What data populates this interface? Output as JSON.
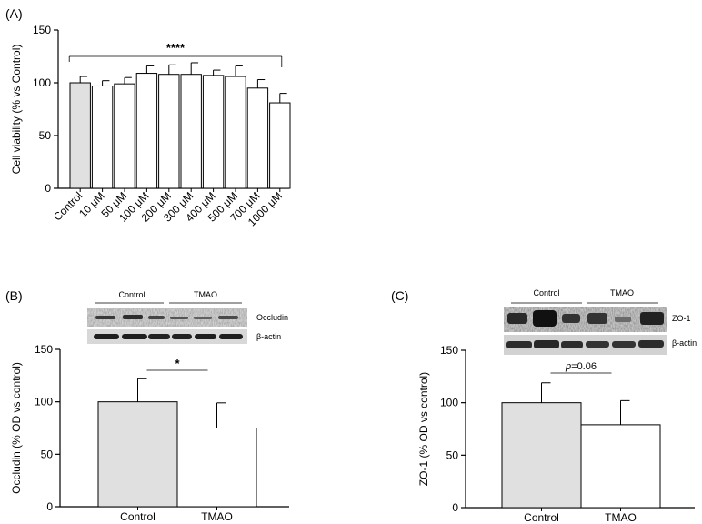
{
  "panels": {
    "a": {
      "label": "(A)"
    },
    "b": {
      "label": "(B)"
    },
    "c": {
      "label": "(C)"
    }
  },
  "chart_data": [
    {
      "type": "bar",
      "panel": "(A)",
      "title": "",
      "xlabel": "",
      "ylabel": "Cell viability (% vs Control)",
      "ylim": [
        0,
        150
      ],
      "yticks": [
        "0",
        "50",
        "100",
        "150"
      ],
      "categories": [
        "Control",
        "10 μM",
        "50 μM",
        "100 μM",
        "200 μM",
        "300 μM",
        "400 μM",
        "500 μM",
        "700 μM",
        "1000 μM"
      ],
      "values": [
        100,
        97,
        99,
        109,
        108,
        108,
        107,
        106,
        95,
        81
      ],
      "errors": [
        6,
        5,
        6,
        7,
        9,
        11,
        5,
        10,
        8,
        9
      ],
      "bar_colors": [
        "#e0e0e0",
        "#ffffff",
        "#ffffff",
        "#ffffff",
        "#ffffff",
        "#ffffff",
        "#ffffff",
        "#ffffff",
        "#ffffff",
        "#ffffff"
      ],
      "significance": {
        "from": 0,
        "to": 9,
        "label": "****"
      },
      "grid": false
    },
    {
      "type": "bar",
      "panel": "(B)",
      "title": "",
      "xlabel": "",
      "ylabel": "Occludin (% OD vs control)",
      "ylim": [
        0,
        150
      ],
      "yticks": [
        "0",
        "50",
        "100",
        "150"
      ],
      "categories": [
        "Control",
        "TMAO"
      ],
      "values": [
        100,
        75
      ],
      "errors": [
        22,
        24
      ],
      "bar_colors": [
        "#e0e0e0",
        "#ffffff"
      ],
      "significance": {
        "from": 0,
        "to": 1,
        "label": "*"
      },
      "blot": {
        "group_labels": [
          "Control",
          "TMAO"
        ],
        "band_labels": [
          "Occludin",
          "β-actin"
        ]
      },
      "grid": false
    },
    {
      "type": "bar",
      "panel": "(C)",
      "title": "",
      "xlabel": "",
      "ylabel": "ZO-1 (% OD vs control)",
      "ylim": [
        0,
        150
      ],
      "yticks": [
        "0",
        "50",
        "100",
        "150"
      ],
      "categories": [
        "Control",
        "TMAO"
      ],
      "values": [
        100,
        79
      ],
      "errors": [
        19,
        23
      ],
      "bar_colors": [
        "#e0e0e0",
        "#ffffff"
      ],
      "significance": {
        "from": 0,
        "to": 1,
        "label_italic": "p",
        "label_rest": "=0.06"
      },
      "blot": {
        "group_labels": [
          "Control",
          "TMAO"
        ],
        "band_labels": [
          "ZO-1",
          "β-actin"
        ]
      },
      "grid": false
    }
  ]
}
